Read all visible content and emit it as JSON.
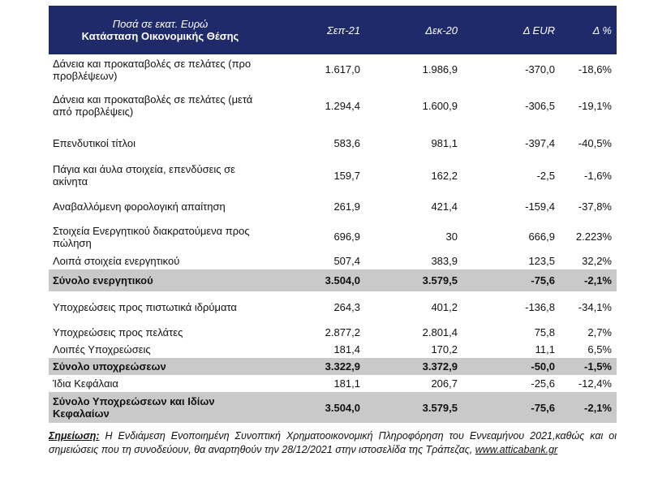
{
  "header": {
    "units": "Ποσά σε εκατ. Ευρώ",
    "title": "Κατάσταση Οικονομικής Θέσης",
    "cols": [
      "Σεπ-21",
      "Δεκ-20",
      "Δ EUR",
      "Δ %"
    ]
  },
  "rows": [
    {
      "label": "Δάνεια και προκαταβολές σε πελάτες (προ προβλέψεων)",
      "v": [
        "1.617,0",
        "1.986,9",
        "-370,0",
        "-18,6%"
      ],
      "total": false,
      "h": 37
    },
    {
      "label": "Δάνεια και προκαταβολές σε πελάτες (μετά από προβλέψεις)",
      "v": [
        "1.294,4",
        "1.600,9",
        "-306,5",
        "-19,1%"
      ],
      "total": false,
      "h": 52
    },
    {
      "label": "Επενδυτικοί τίτλοι",
      "v": [
        "583,6",
        "981,1",
        "-397,4",
        "-40,5%"
      ],
      "total": false,
      "h": 40
    },
    {
      "label": "Πάγια και άυλα στοιχεία, επενδύσεις σε ακίνητα",
      "v": [
        "159,7",
        "162,2",
        "-2,5",
        "-1,6%"
      ],
      "total": false,
      "h": 40
    },
    {
      "label": "Αναβαλλόμενη φορολογική απαίτηση",
      "v": [
        "261,9",
        "421,4",
        "-159,4",
        "-37,8%"
      ],
      "total": false,
      "h": 37
    },
    {
      "label": "Στοιχεία Ενεργητικού διακρατούμενα προς πώληση",
      "v": [
        "696,9",
        "30",
        "666,9",
        "2.223%"
      ],
      "total": false,
      "h": 37
    },
    {
      "label": "Λοιπά στοιχεία ενεργητικού",
      "v": [
        "507,4",
        "383,9",
        "123,5",
        "32,2%"
      ],
      "total": false,
      "h": 22
    },
    {
      "label": "Σύνολο ενεργητικού",
      "v": [
        "3.504,0",
        "3.579,5",
        "-75,6",
        "-2,1%"
      ],
      "total": true,
      "h": 27
    },
    {
      "label": "Υποχρεώσεις προς πιστωτικά ιδρύματα",
      "v": [
        "264,3",
        "401,2",
        "-136,8",
        "-34,1%"
      ],
      "total": false,
      "h": 39
    },
    {
      "label": "Υποχρεώσεις προς πελάτες",
      "v": [
        "2.877,2",
        "2.801,4",
        "75,8",
        "2,7%"
      ],
      "total": false,
      "h": 22
    },
    {
      "label": "Λοιπές Υποχρεώσεις",
      "v": [
        "181,4",
        "170,2",
        "11,1",
        "6,5%"
      ],
      "total": false,
      "h": 21
    },
    {
      "label": "Σύνολο υποχρεώσεων",
      "v": [
        "3.322,9",
        "3.372,9",
        "-50,0",
        "-1,5%"
      ],
      "total": true,
      "h": 21
    },
    {
      "label": "Ίδια Κεφάλαια",
      "v": [
        "181,1",
        "206,7",
        "-25,6",
        "-12,4%"
      ],
      "total": false,
      "h": 21
    },
    {
      "label": "Σύνολο Υποχρεώσεων και Ιδίων Κεφαλαίων",
      "v": [
        "3.504,0",
        "3.579,5",
        "-75,6",
        "-2,1%"
      ],
      "total": true,
      "h": 38
    }
  ],
  "note": {
    "label": "Σημείωση:",
    "text": " Η Ενδιάμεση Ενοποιημένη Συνοπτική Χρηματοοικονομική Πληροφόρηση του Εννεαμήνου 2021,καθώς και οι σημειώσεις που τη συνοδεύουν, θα αναρτηθούν την 28/12/2021 στην ιστοσελίδα της Τράπεζας, ",
    "link": "www.atticabank.gr"
  }
}
